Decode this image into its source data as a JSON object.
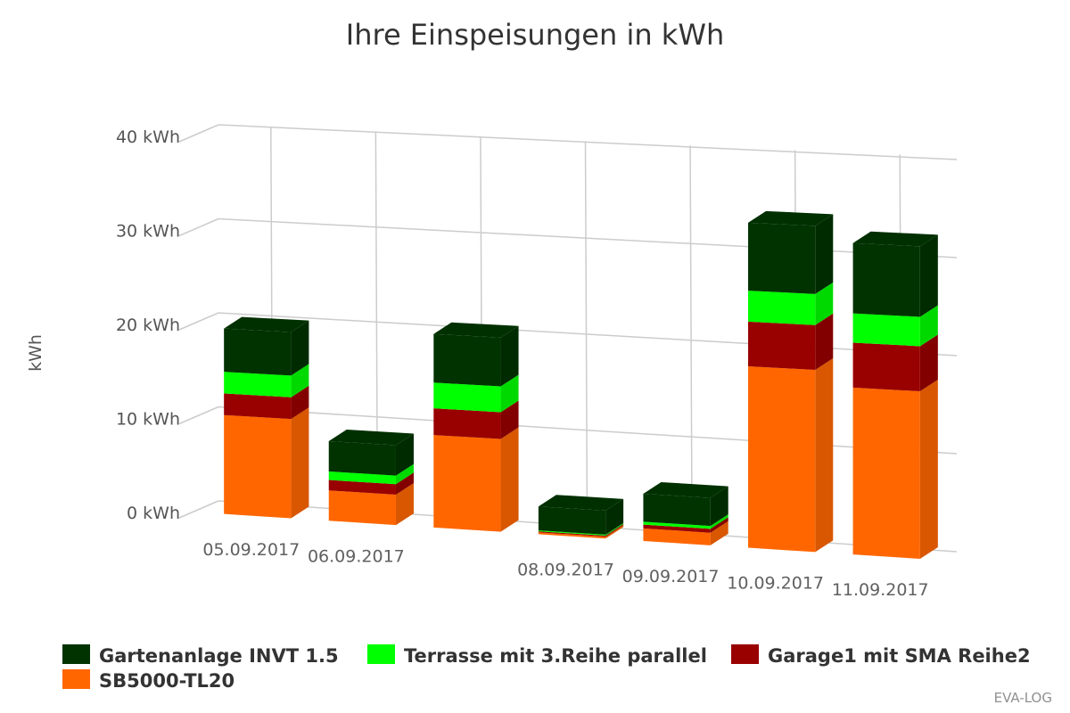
{
  "chart_data": {
    "type": "bar",
    "stacked": true,
    "three_d": true,
    "title": "Ihre Einspeisungen in kWh",
    "ylabel": "kWh",
    "ylim": [
      0,
      40
    ],
    "yticks": [
      {
        "value": 0,
        "label": "0 kWh"
      },
      {
        "value": 10,
        "label": "10 kWh"
      },
      {
        "value": 20,
        "label": "20 kWh"
      },
      {
        "value": 30,
        "label": "30 kWh"
      },
      {
        "value": 40,
        "label": "40 kWh"
      }
    ],
    "categories": [
      "05.09.2017",
      "06.09.2017",
      "",
      "08.09.2017",
      "09.09.2017",
      "10.09.2017",
      "11.09.2017"
    ],
    "series": [
      {
        "name": "SB5000-TL20",
        "color": "#ff6600",
        "values": [
          10.5,
          3.2,
          9.7,
          0.2,
          1.3,
          18.7,
          17.1
        ]
      },
      {
        "name": "Garage1 mit SMA Reihe2",
        "color": "#990000",
        "values": [
          2.3,
          1.1,
          2.8,
          0.1,
          0.4,
          4.6,
          4.6
        ]
      },
      {
        "name": "Terrasse mit 3.Reihe parallel",
        "color": "#00ff00",
        "values": [
          2.3,
          0.9,
          2.7,
          0.1,
          0.3,
          3.2,
          3.0
        ]
      },
      {
        "name": "Gartenanlage INVT 1.5",
        "color": "#003300",
        "values": [
          4.6,
          3.2,
          5.1,
          2.5,
          2.9,
          7.0,
          7.2
        ]
      }
    ],
    "legend": {
      "placement": "bottom-left",
      "order": [
        "Gartenanlage INVT 1.5",
        "Terrasse mit 3.Reihe parallel",
        "Garage1 mit SMA Reihe2",
        "SB5000-TL20"
      ]
    },
    "grid": true,
    "credit": "EVA-LOG"
  }
}
